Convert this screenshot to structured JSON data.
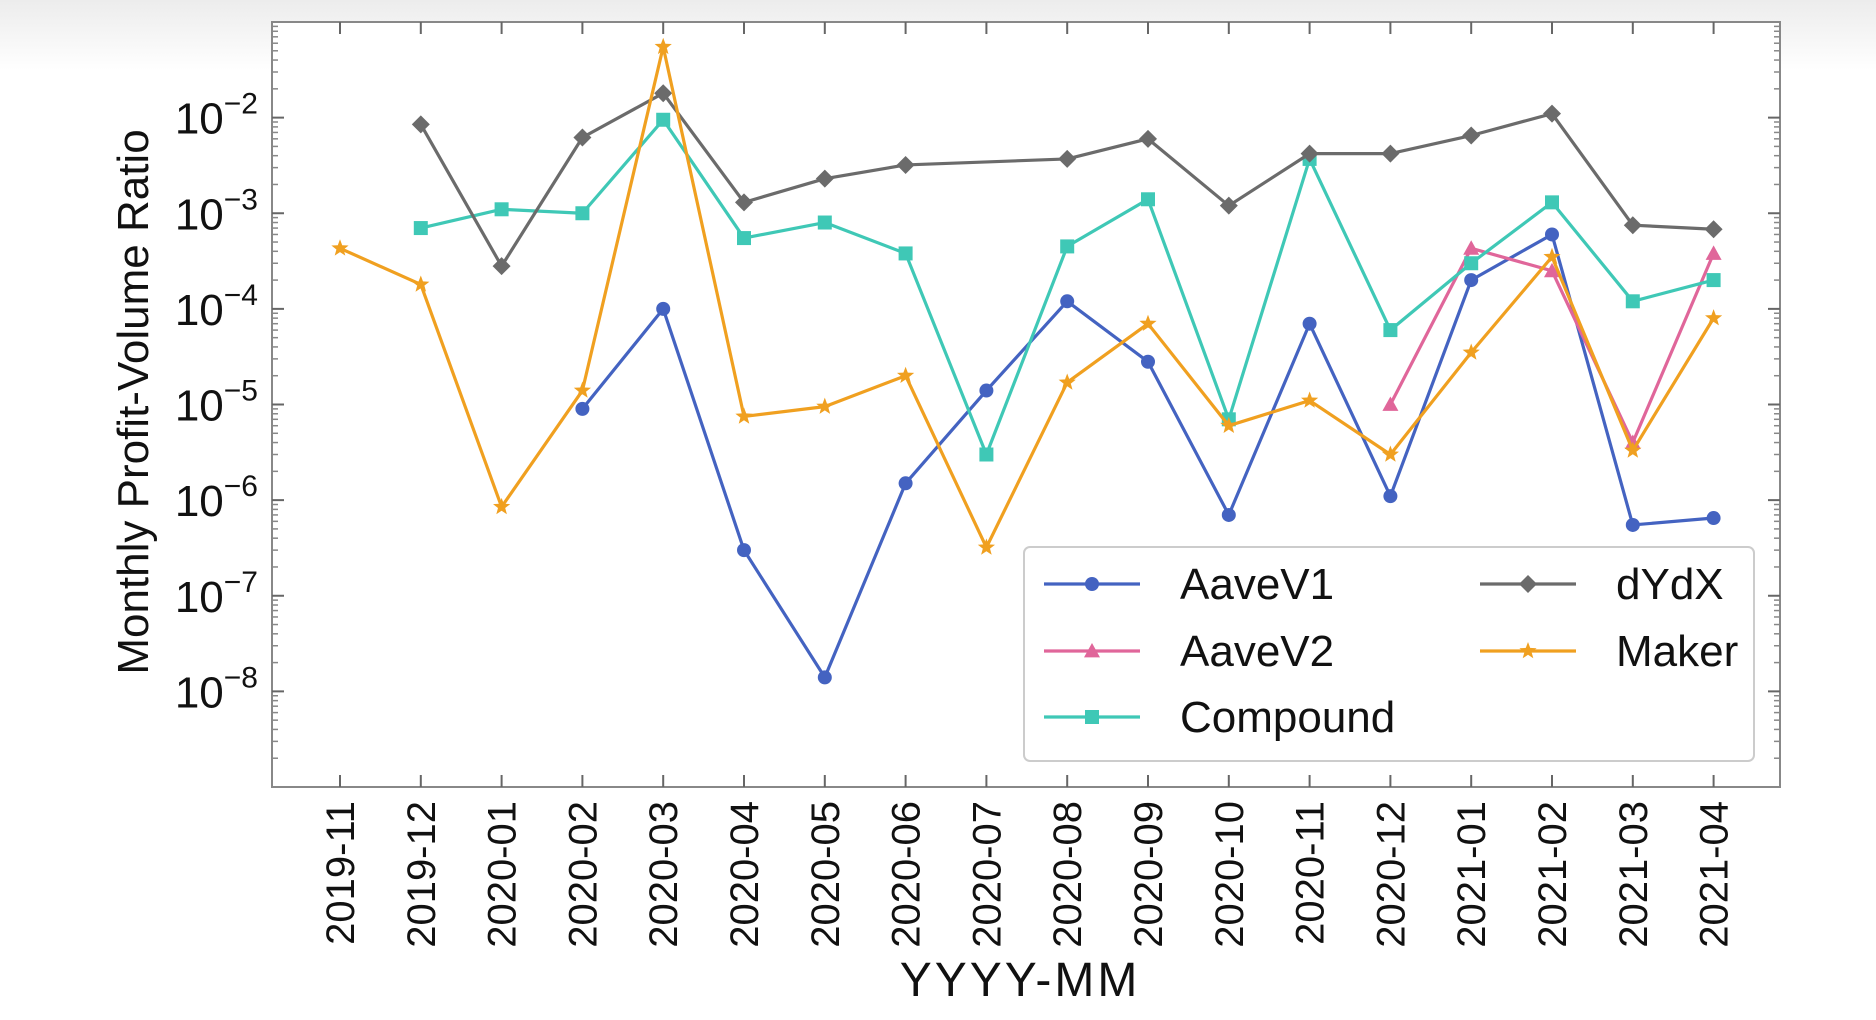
{
  "chart_data": {
    "type": "line",
    "xlabel": "YYYY-MM",
    "ylabel": "Monthly Profit-Volume Ratio",
    "yscale": "log",
    "ylim": [
      1e-09,
      0.1
    ],
    "yticks": [
      1e-08,
      1e-07,
      1e-06,
      1e-05,
      0.0001,
      0.001,
      0.01
    ],
    "ytick_labels": [
      {
        "base": "10",
        "exp": "−8"
      },
      {
        "base": "10",
        "exp": "−7"
      },
      {
        "base": "10",
        "exp": "−6"
      },
      {
        "base": "10",
        "exp": "−5"
      },
      {
        "base": "10",
        "exp": "−4"
      },
      {
        "base": "10",
        "exp": "−3"
      },
      {
        "base": "10",
        "exp": "−2"
      }
    ],
    "categories": [
      "2019-11",
      "2019-12",
      "2020-01",
      "2020-02",
      "2020-03",
      "2020-04",
      "2020-05",
      "2020-06",
      "2020-07",
      "2020-08",
      "2020-09",
      "2020-10",
      "2020-11",
      "2020-12",
      "2021-01",
      "2021-02",
      "2021-03",
      "2021-04"
    ],
    "grid": false,
    "legend_position": "lower-right",
    "series": [
      {
        "name": "AaveV1",
        "color": "#4463c1",
        "marker": "circle",
        "values": [
          null,
          null,
          null,
          9e-06,
          0.0001,
          3e-07,
          1.4e-08,
          1.5e-06,
          1.4e-05,
          0.00012,
          2.8e-05,
          7e-07,
          7e-05,
          1.1e-06,
          0.0002,
          0.0006,
          5.5e-07,
          6.5e-07
        ]
      },
      {
        "name": "AaveV2",
        "color": "#e0669a",
        "marker": "triangle",
        "values": [
          null,
          null,
          null,
          null,
          null,
          null,
          null,
          null,
          null,
          null,
          null,
          null,
          null,
          1e-05,
          0.00043,
          0.00025,
          4e-06,
          0.00038
        ]
      },
      {
        "name": "Compound",
        "color": "#3fc8b6",
        "marker": "square",
        "values": [
          null,
          0.0007,
          0.0011,
          0.001,
          0.0095,
          0.00055,
          0.0008,
          0.00038,
          3e-06,
          0.00045,
          0.0014,
          7e-06,
          0.0037,
          6e-05,
          0.0003,
          0.0013,
          0.00012,
          0.0002
        ]
      },
      {
        "name": "dYdX",
        "color": "#6b6b6b",
        "marker": "diamond",
        "values": [
          null,
          0.0085,
          0.00028,
          0.0062,
          0.018,
          0.0013,
          0.0023,
          0.0032,
          null,
          0.0037,
          0.006,
          0.0012,
          0.0042,
          0.0042,
          0.0065,
          0.011,
          0.00075,
          0.00068
        ]
      },
      {
        "name": "Maker",
        "color": "#f0a020",
        "marker": "star",
        "values": [
          0.00043,
          0.00018,
          8.5e-07,
          1.4e-05,
          0.055,
          7.5e-06,
          9.5e-06,
          2e-05,
          3.2e-07,
          1.7e-05,
          7e-05,
          6e-06,
          1.1e-05,
          3e-06,
          3.5e-05,
          0.00035,
          3.3e-06,
          8e-05
        ]
      }
    ],
    "legend_columns": [
      [
        "AaveV1",
        "AaveV2",
        "Compound"
      ],
      [
        "dYdX",
        "Maker"
      ]
    ]
  }
}
